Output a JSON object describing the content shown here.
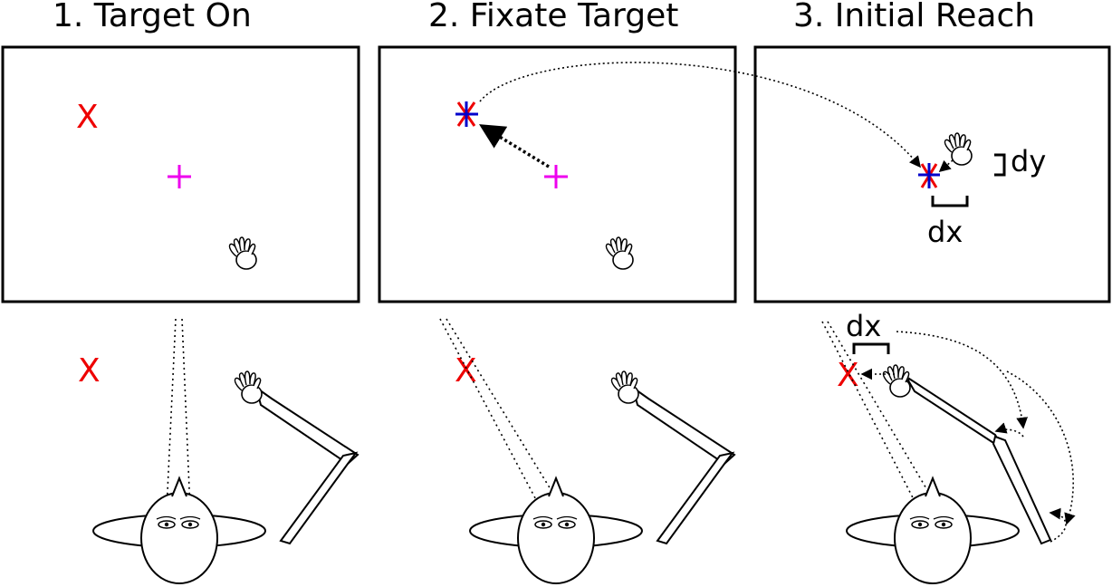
{
  "panels": [
    {
      "title": "1. Target On"
    },
    {
      "title": "2. Fixate Target"
    },
    {
      "title": "3. Initial Reach"
    }
  ],
  "labels": {
    "target_marker": "X",
    "offset_x": "dx",
    "offset_y": "dy"
  },
  "colors": {
    "target": "#ee0000",
    "fixation_cross": "#ee00ee",
    "gaze_marker": "#0000cc",
    "outline": "#000000"
  },
  "icons": [
    "hand-icon",
    "head-icon",
    "arm-icon",
    "fixation-cross-icon",
    "gaze-star-icon"
  ]
}
